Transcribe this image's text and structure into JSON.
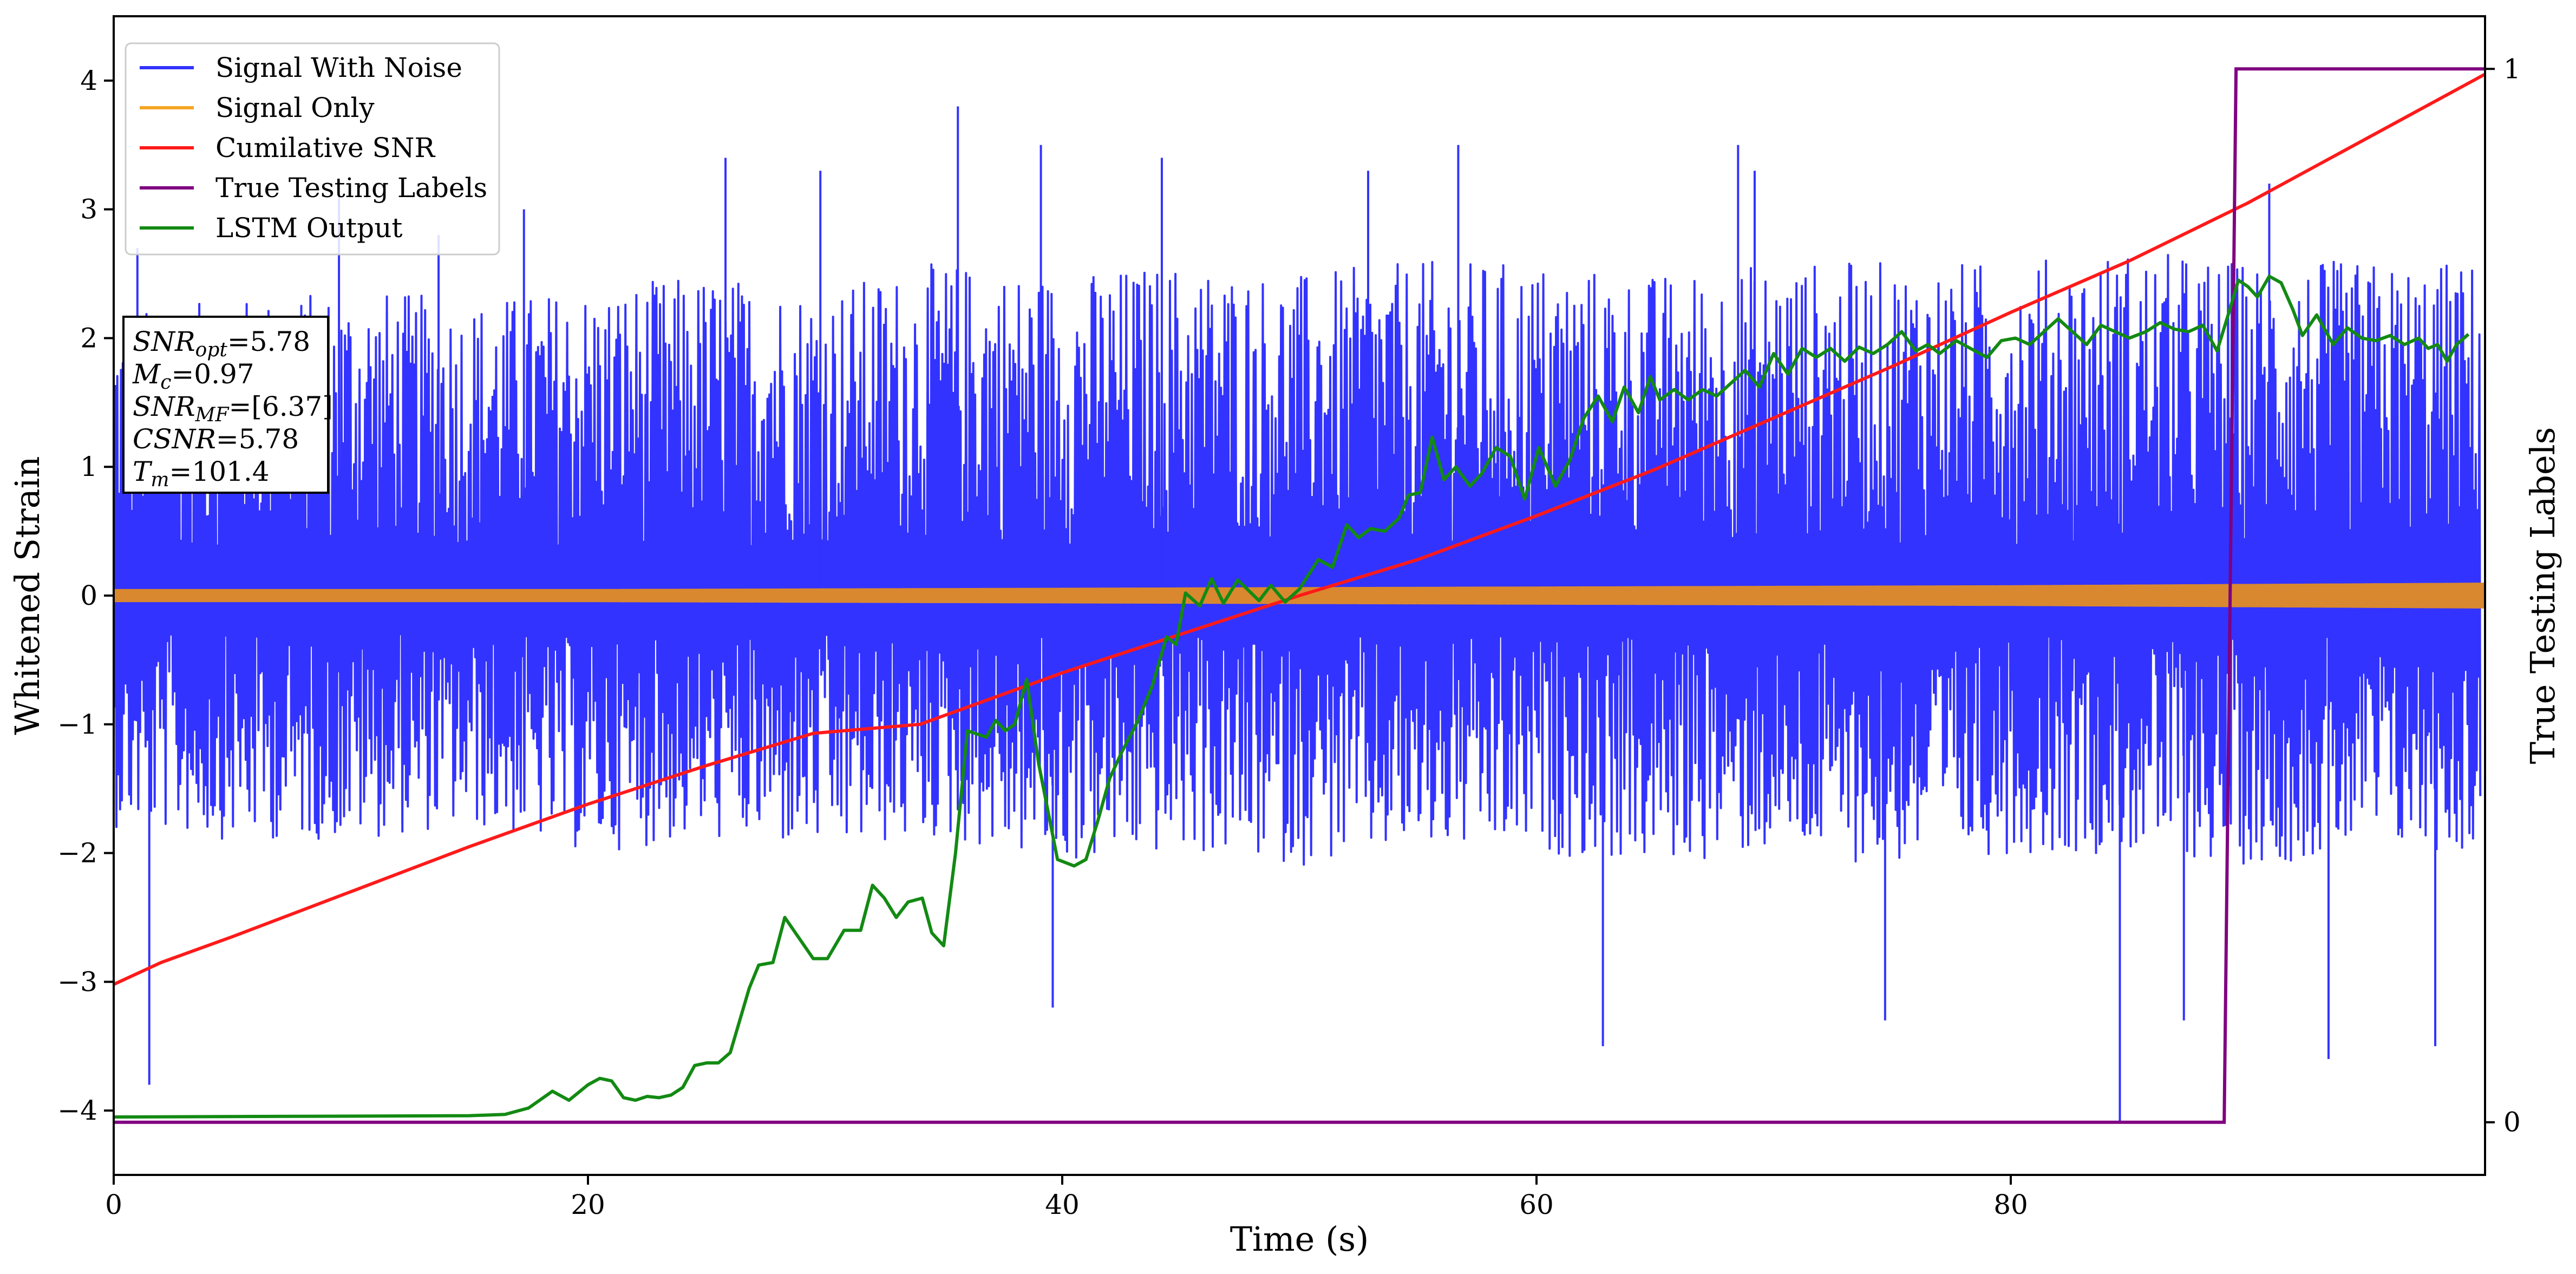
{
  "chart_data": {
    "type": "line",
    "title": "",
    "xlabel": "Time (s)",
    "ylabel": "Whitened Strain",
    "y2label": "True Testing Labels",
    "xlim": [
      0,
      100
    ],
    "ylim": [
      -4.5,
      4.5
    ],
    "y2lim": [
      -0.05,
      1.05
    ],
    "xticks": [
      0,
      20,
      40,
      60,
      80
    ],
    "yticks": [
      -4,
      -3,
      -2,
      -1,
      0,
      1,
      2,
      3,
      4
    ],
    "y2ticks": [
      0,
      1
    ],
    "grid": false,
    "legend_placement": "top-left",
    "legend": [
      {
        "name": "Signal With Noise",
        "color": "#3333ff"
      },
      {
        "name": "Signal Only",
        "color": "#f5a623"
      },
      {
        "name": "Cumilative SNR",
        "color": "#ff1a1a"
      },
      {
        "name": "True Testing Labels",
        "color": "#800080"
      },
      {
        "name": "LSTM Output",
        "color": "#138a13"
      }
    ],
    "annotations": [
      {
        "sym": "SNR",
        "sub": "opt",
        "value": "=5.78"
      },
      {
        "sym": "M",
        "sub": "c",
        "value": "=0.97"
      },
      {
        "sym": "SNR",
        "sub": "MF",
        "value": "=[6.37]"
      },
      {
        "sym": "CSNR",
        "sub": "",
        "value": "=5.78"
      },
      {
        "sym": "T",
        "sub": "m",
        "value": "=101.4"
      }
    ],
    "series": [
      {
        "name": "Signal With Noise",
        "color": "#3333ff",
        "axis": "left",
        "note_visual": "dense noise band, mostly within about -1.6 to 2.0",
        "x": [
          0,
          5,
          10,
          15,
          20,
          25,
          30,
          35,
          40,
          45,
          50,
          55,
          60,
          65,
          70,
          75,
          80,
          85,
          90,
          95,
          99.8
        ],
        "upper": [
          2.2,
          2.3,
          2.4,
          2.3,
          2.4,
          2.5,
          2.4,
          2.6,
          2.5,
          2.6,
          2.5,
          2.6,
          2.6,
          2.5,
          2.6,
          2.6,
          2.6,
          2.7,
          2.6,
          2.6,
          2.6
        ],
        "lower": [
          -1.8,
          -1.9,
          -1.9,
          -1.8,
          -2.0,
          -1.9,
          -2.0,
          -1.9,
          -2.1,
          -2.0,
          -2.1,
          -2.0,
          -2.0,
          -2.1,
          -2.0,
          -2.1,
          -2.0,
          -2.0,
          -2.1,
          -2.0,
          -2.0
        ],
        "spikes": [
          [
            1.5,
            -3.8
          ],
          [
            1.0,
            2.7
          ],
          [
            9.5,
            3.1
          ],
          [
            13.7,
            2.8
          ],
          [
            17.3,
            3.0
          ],
          [
            25.8,
            3.4
          ],
          [
            29.8,
            3.3
          ],
          [
            35.6,
            3.8
          ],
          [
            39.1,
            3.5
          ],
          [
            39.6,
            -3.2
          ],
          [
            44.2,
            3.4
          ],
          [
            52.9,
            3.3
          ],
          [
            56.7,
            3.5
          ],
          [
            62.8,
            -3.5
          ],
          [
            68.5,
            3.5
          ],
          [
            69.2,
            3.3
          ],
          [
            74.7,
            -3.3
          ],
          [
            84.6,
            -4.1
          ],
          [
            87.3,
            -3.3
          ],
          [
            90.9,
            3.2
          ],
          [
            93.4,
            -3.6
          ],
          [
            97.9,
            -3.5
          ]
        ]
      },
      {
        "name": "Signal Only",
        "color": "#f5a623",
        "axis": "left",
        "note_visual": "thin band around zero, growing slightly in amplitude",
        "x": [
          0,
          20,
          40,
          60,
          80,
          100
        ],
        "amplitude": [
          0.05,
          0.05,
          0.06,
          0.07,
          0.08,
          0.1
        ]
      },
      {
        "name": "Cumilative SNR",
        "color": "#ff1a1a",
        "axis": "left",
        "x": [
          0,
          2,
          5,
          10,
          15,
          20,
          25,
          29.5,
          34,
          40,
          45,
          50,
          55,
          60,
          65,
          70,
          75,
          80,
          85,
          90,
          95,
          100
        ],
        "y": [
          -3.02,
          -2.85,
          -2.65,
          -2.3,
          -1.95,
          -1.62,
          -1.32,
          -1.07,
          -1.0,
          -0.6,
          -0.3,
          0.0,
          0.28,
          0.62,
          0.98,
          1.38,
          1.78,
          2.2,
          2.6,
          3.05,
          3.55,
          4.05
        ]
      },
      {
        "name": "True Testing Labels",
        "color": "#800080",
        "axis": "right",
        "x": [
          0,
          89.0,
          89.5,
          100
        ],
        "y": [
          0,
          0,
          1,
          1
        ]
      },
      {
        "name": "LSTM Output",
        "color": "#138a13",
        "axis": "left",
        "x": [
          0,
          15,
          16.5,
          17.5,
          18.5,
          19.2,
          20,
          20.5,
          21,
          21.5,
          22,
          22.5,
          23,
          23.5,
          24,
          24.5,
          25,
          25.5,
          26,
          26.8,
          27.2,
          27.8,
          28.3,
          29.5,
          30.1,
          30.8,
          31.5,
          32,
          32.5,
          33,
          33.5,
          34.1,
          34.5,
          35,
          35.5,
          36,
          36.8,
          37.2,
          37.6,
          38,
          38.5,
          39,
          39.8,
          40.5,
          41,
          41.5,
          42,
          42.5,
          43.2,
          43.8,
          44.4,
          44.8,
          45.2,
          45.8,
          46.3,
          46.8,
          47.4,
          47.8,
          48.3,
          48.8,
          49.4,
          50,
          50.8,
          51.4,
          52,
          52.5,
          53,
          53.6,
          54.2,
          54.6,
          55.1,
          55.6,
          56.1,
          56.6,
          57.2,
          57.7,
          58.3,
          58.9,
          59.5,
          60.1,
          60.8,
          61.4,
          62,
          62.6,
          63.2,
          63.7,
          64.3,
          64.8,
          65.2,
          65.8,
          66.4,
          67,
          67.6,
          68.2,
          68.8,
          69.4,
          70,
          70.6,
          71.2,
          71.8,
          72.4,
          73,
          73.6,
          74.2,
          74.8,
          75.4,
          76,
          76.5,
          77,
          77.7,
          78.3,
          79,
          79.6,
          80.2,
          80.8,
          81.4,
          82,
          82.6,
          83.2,
          83.8,
          84.4,
          85,
          85.7,
          86.3,
          86.9,
          87.5,
          88.1,
          88.7,
          89.2,
          89.6,
          90,
          90.4,
          90.9,
          91.4,
          91.9,
          92.3,
          92.9,
          93.6,
          94.2,
          94.8,
          95.4,
          96,
          96.6,
          97.2,
          97.6,
          98,
          98.4,
          98.8,
          99.3
        ],
        "y": [
          -4.05,
          -4.04,
          -4.03,
          -3.98,
          -3.85,
          -3.92,
          -3.8,
          -3.75,
          -3.77,
          -3.9,
          -3.92,
          -3.89,
          -3.9,
          -3.88,
          -3.82,
          -3.65,
          -3.63,
          -3.63,
          -3.55,
          -3.05,
          -2.87,
          -2.85,
          -2.5,
          -2.82,
          -2.82,
          -2.6,
          -2.6,
          -2.25,
          -2.35,
          -2.5,
          -2.38,
          -2.35,
          -2.62,
          -2.72,
          -2.0,
          -1.05,
          -1.1,
          -0.97,
          -1.05,
          -1.0,
          -0.65,
          -1.3,
          -2.05,
          -2.1,
          -2.05,
          -1.75,
          -1.42,
          -1.22,
          -0.97,
          -0.7,
          -0.32,
          -0.38,
          0.02,
          -0.08,
          0.13,
          -0.06,
          0.12,
          0.05,
          -0.04,
          0.08,
          -0.05,
          0.05,
          0.28,
          0.22,
          0.55,
          0.45,
          0.52,
          0.5,
          0.6,
          0.78,
          0.8,
          1.23,
          0.9,
          1.0,
          0.85,
          0.95,
          1.15,
          1.08,
          0.75,
          1.15,
          0.85,
          1.05,
          1.38,
          1.55,
          1.35,
          1.62,
          1.42,
          1.7,
          1.52,
          1.6,
          1.52,
          1.6,
          1.55,
          1.65,
          1.75,
          1.62,
          1.88,
          1.72,
          1.92,
          1.85,
          1.92,
          1.82,
          1.93,
          1.88,
          1.95,
          2.05,
          1.9,
          1.95,
          1.88,
          1.98,
          1.92,
          1.85,
          1.98,
          2.0,
          1.95,
          2.05,
          2.15,
          2.05,
          1.95,
          2.1,
          2.05,
          2.0,
          2.05,
          2.12,
          2.07,
          2.05,
          2.1,
          1.9,
          2.2,
          2.45,
          2.4,
          2.32,
          2.48,
          2.43,
          2.22,
          2.02,
          2.18,
          1.95,
          2.08,
          2.0,
          1.98,
          2.02,
          1.95,
          2.0,
          1.92,
          1.95,
          1.82,
          1.95,
          2.03
        ]
      }
    ]
  }
}
